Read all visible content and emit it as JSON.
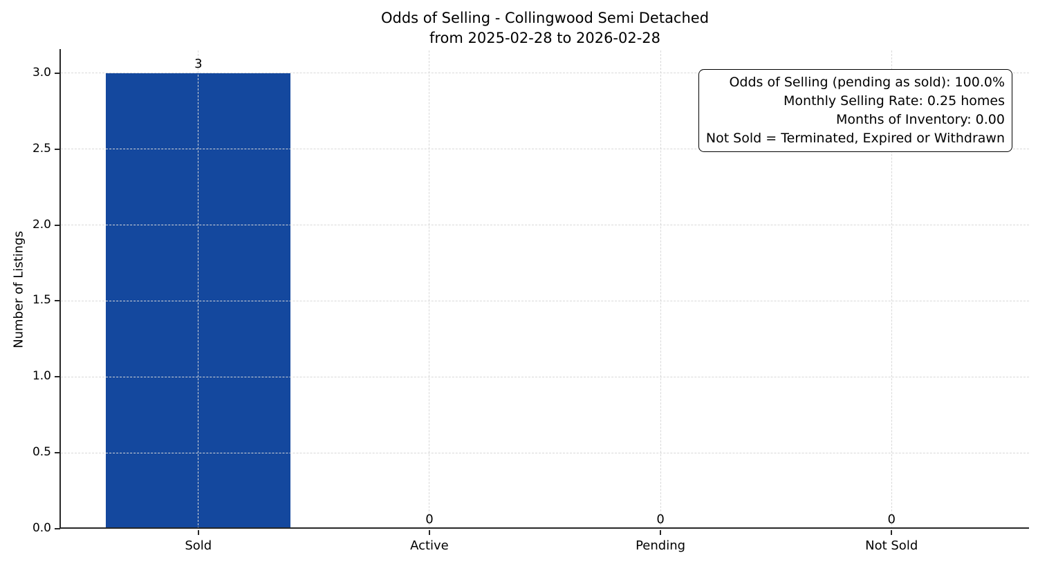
{
  "chart_data": {
    "type": "bar",
    "title_lines": [
      "Odds of Selling - Collingwood Semi Detached",
      "from 2025-02-28 to 2026-02-28"
    ],
    "xlabel": "",
    "ylabel": "Number of Listings",
    "categories": [
      "Sold",
      "Active",
      "Pending",
      "Not Sold"
    ],
    "values": [
      3,
      0,
      0,
      0
    ],
    "ylim": [
      0,
      3.15
    ],
    "yticks": [
      0,
      0.5,
      1,
      1.5,
      2,
      2.5,
      3
    ],
    "grid": true,
    "grid_style": "dashed",
    "legend_position": "none",
    "bar_color": "#14489e",
    "annotation": {
      "lines": [
        "Odds of Selling (pending as sold): 100.0%",
        "Monthly Selling Rate: 0.25 homes",
        "Months of Inventory: 0.00",
        "Not Sold = Terminated, Expired or Withdrawn"
      ]
    }
  },
  "colors": {
    "bar": "#14489e",
    "spine": "#262626",
    "grid": "#d8d8d8",
    "text": "#000000",
    "background": "#ffffff"
  }
}
